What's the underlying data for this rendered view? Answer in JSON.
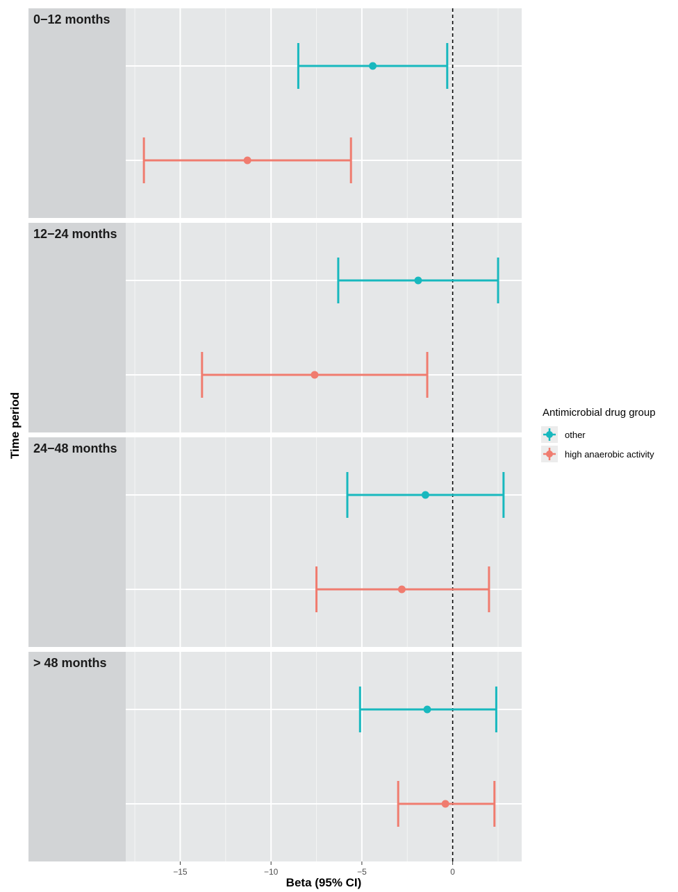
{
  "chart_data": {
    "type": "forest",
    "xlabel": "Beta (95% CI)",
    "ylabel": "Time period",
    "xlim": [
      -18,
      3.8
    ],
    "x_ticks": [
      -15,
      -10,
      -5,
      0
    ],
    "x_tick_labels": [
      "−15",
      "−10",
      "−5",
      "0"
    ],
    "reference_line": 0,
    "grid": true,
    "legend": {
      "title": "Antimicrobial drug group",
      "position": "right",
      "entries": [
        {
          "name": "other",
          "color": "#18B8BE"
        },
        {
          "name": "high anaerobic activity",
          "color": "#F07C6F"
        }
      ]
    },
    "panels": [
      {
        "label": "0−12 months",
        "series": [
          {
            "name": "other",
            "estimate": -4.4,
            "lower": -8.5,
            "upper": -0.3
          },
          {
            "name": "high anaerobic activity",
            "estimate": -11.3,
            "lower": -17.0,
            "upper": -5.6
          }
        ]
      },
      {
        "label": "12−24 months",
        "series": [
          {
            "name": "other",
            "estimate": -1.9,
            "lower": -6.3,
            "upper": 2.5
          },
          {
            "name": "high anaerobic activity",
            "estimate": -7.6,
            "lower": -13.8,
            "upper": -1.4
          }
        ]
      },
      {
        "label": "24−48 months",
        "series": [
          {
            "name": "other",
            "estimate": -1.5,
            "lower": -5.8,
            "upper": 2.8
          },
          {
            "name": "high anaerobic activity",
            "estimate": -2.8,
            "lower": -7.5,
            "upper": 2.0
          }
        ]
      },
      {
        "label": "> 48 months",
        "series": [
          {
            "name": "other",
            "estimate": -1.4,
            "lower": -5.1,
            "upper": 2.4
          },
          {
            "name": "high anaerobic activity",
            "estimate": -0.4,
            "lower": -3.0,
            "upper": 2.3
          }
        ]
      }
    ]
  }
}
